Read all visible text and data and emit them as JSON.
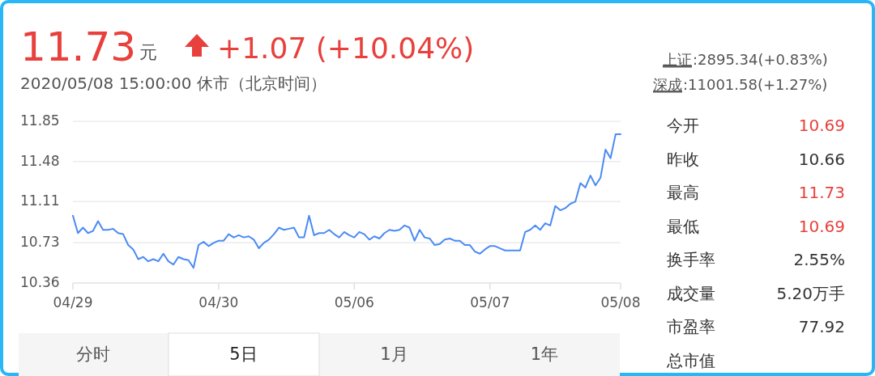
{
  "chart_data": {
    "type": "line",
    "color": "#4a8af4",
    "grid": "y",
    "marker": "none",
    "line_style": "solid",
    "categories": [
      "04/29",
      null,
      null,
      null,
      null,
      null,
      null,
      null,
      null,
      null,
      null,
      null,
      null,
      null,
      null,
      null,
      null,
      null,
      null,
      null,
      null,
      null,
      null,
      null,
      null,
      null,
      null,
      null,
      null,
      "04/30",
      null,
      null,
      null,
      null,
      null,
      null,
      null,
      null,
      null,
      null,
      null,
      null,
      null,
      null,
      null,
      null,
      null,
      null,
      null,
      null,
      null,
      null,
      null,
      null,
      null,
      null,
      "05/06",
      null,
      null,
      null,
      null,
      null,
      null,
      null,
      null,
      null,
      null,
      null,
      null,
      null,
      null,
      null,
      null,
      null,
      null,
      null,
      null,
      null,
      null,
      null,
      null,
      null,
      null,
      "05/07",
      null,
      null,
      null,
      null,
      null,
      null,
      null,
      null,
      null,
      null,
      null,
      null,
      null,
      null,
      null,
      null,
      null,
      null,
      null,
      null,
      null,
      null,
      null,
      null,
      null,
      "05/08"
    ],
    "values": [
      10.98,
      10.82,
      10.87,
      10.82,
      10.84,
      10.93,
      10.85,
      10.85,
      10.86,
      10.82,
      10.81,
      10.71,
      10.67,
      10.58,
      10.6,
      10.56,
      10.58,
      10.56,
      10.63,
      10.56,
      10.53,
      10.6,
      10.58,
      10.57,
      10.5,
      10.71,
      10.74,
      10.7,
      10.73,
      10.75,
      10.75,
      10.81,
      10.78,
      10.8,
      10.78,
      10.79,
      10.76,
      10.68,
      10.73,
      10.76,
      10.81,
      10.87,
      10.85,
      10.86,
      10.87,
      10.78,
      10.78,
      10.98,
      10.8,
      10.82,
      10.82,
      10.85,
      10.81,
      10.78,
      10.83,
      10.8,
      10.78,
      10.83,
      10.81,
      10.76,
      10.79,
      10.77,
      10.82,
      10.85,
      10.84,
      10.85,
      10.89,
      10.87,
      10.75,
      10.85,
      10.78,
      10.77,
      10.71,
      10.72,
      10.76,
      10.77,
      10.75,
      10.75,
      10.71,
      10.71,
      10.65,
      10.63,
      10.67,
      10.7,
      10.7,
      10.68,
      10.66,
      10.66,
      10.66,
      10.66,
      10.83,
      10.85,
      10.89,
      10.85,
      10.91,
      10.89,
      11.07,
      11.03,
      11.05,
      11.09,
      11.11,
      11.28,
      11.24,
      11.35,
      11.26,
      11.33,
      11.59,
      11.51,
      11.73,
      11.73
    ],
    "ylim": [
      10.36,
      11.85
    ],
    "yticks": [
      10.36,
      10.73,
      11.11,
      11.48,
      11.85
    ],
    "annotations": [
      "11.73",
      "元",
      "+1.07 (+10.04%)",
      "2020/05/08 15:00:00 休市（北京时间）",
      "上证",
      ":2895.34(+0.83%)",
      "深成",
      ":11001.58(+1.27%)",
      "今开",
      "10.69",
      "昨收",
      "10.66",
      "最高",
      "11.73",
      "最低",
      "10.69",
      "换手率",
      "2.55%",
      "成交量",
      "5.20万手",
      "市盈率",
      "77.92",
      "总市值",
      "分时",
      "5日",
      "1月",
      "1年"
    ]
  }
}
